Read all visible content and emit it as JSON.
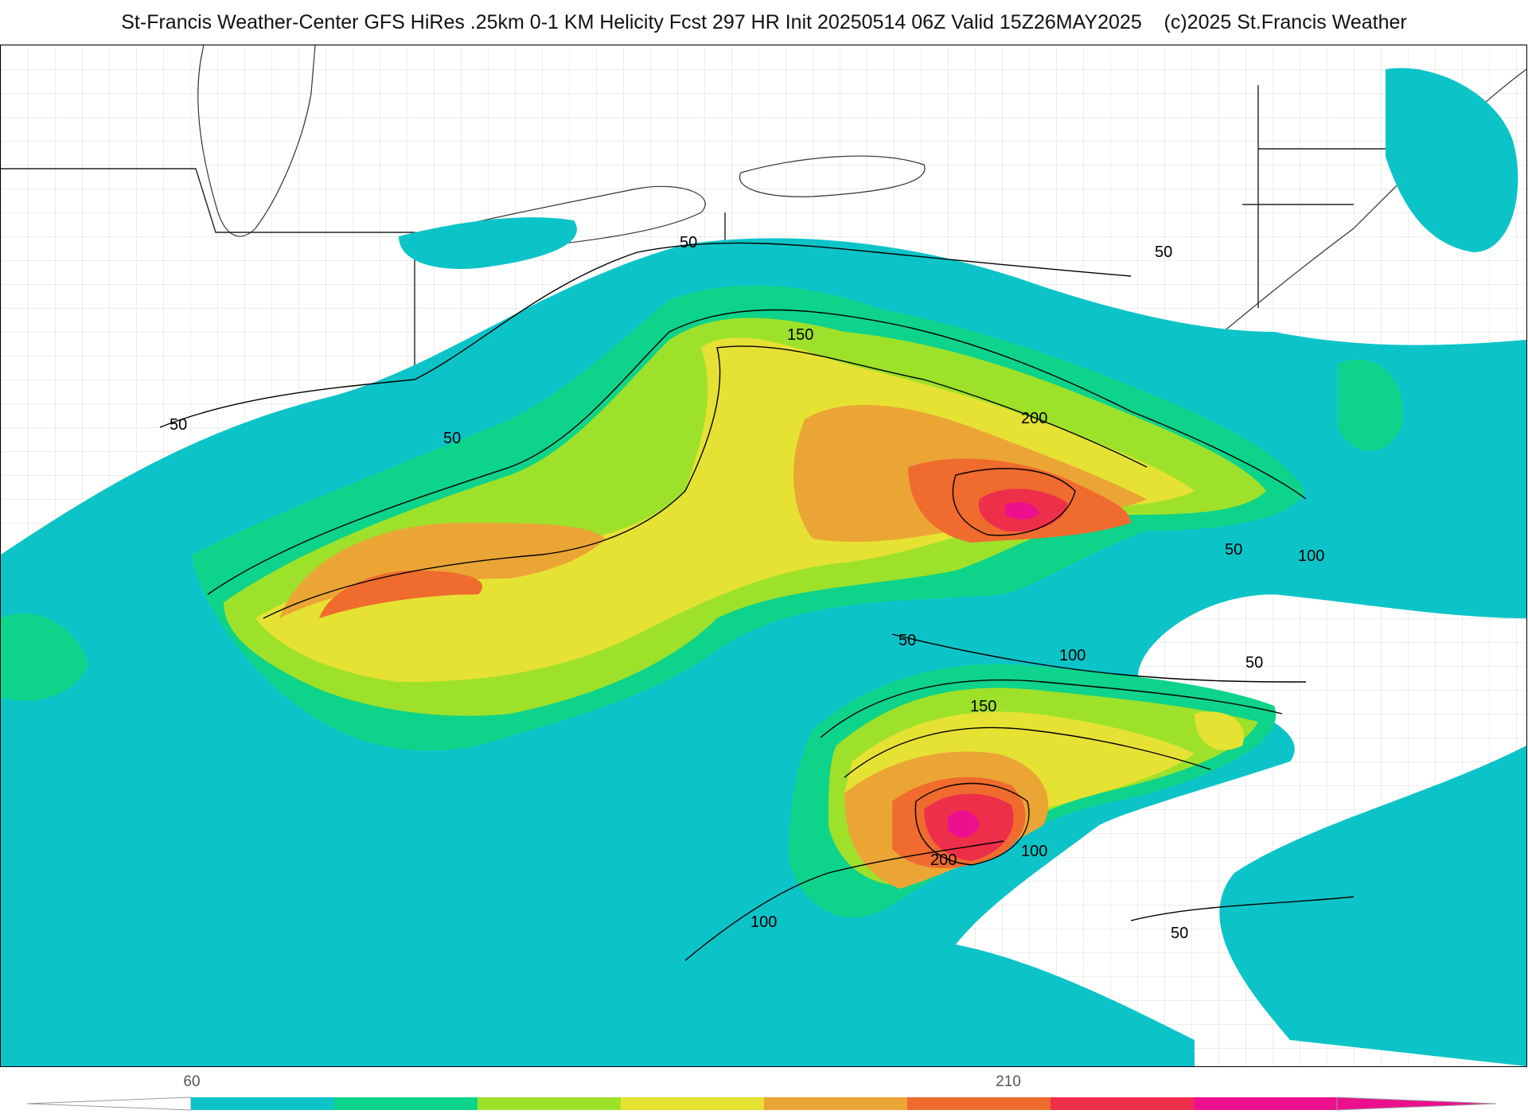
{
  "header": {
    "title": "St-Francis Weather-Center GFS HiRes .25km 0-1 KM Helicity Fcst 297 HR Init 20250514 06Z  Valid 15Z26MAY2025",
    "copyright": "(c)2025 St.Francis Weather"
  },
  "map": {
    "contour_labels": [
      "50",
      "50",
      "50",
      "50",
      "50",
      "50",
      "50",
      "50",
      "100",
      "100",
      "100",
      "100",
      "150",
      "150",
      "200",
      "200"
    ]
  },
  "legend": {
    "tick_labels": [
      "60",
      "210"
    ],
    "bins": [
      {
        "value": 60,
        "color": "#0cc4c8"
      },
      {
        "value": 90,
        "color": "#0ed38a"
      },
      {
        "value": 120,
        "color": "#9ee12a"
      },
      {
        "value": 150,
        "color": "#e6e234"
      },
      {
        "value": 180,
        "color": "#eba535"
      },
      {
        "value": 210,
        "color": "#ef6b2e"
      },
      {
        "value": 240,
        "color": "#ee2f4a"
      },
      {
        "value": 270,
        "color": "#ec108e"
      }
    ]
  }
}
